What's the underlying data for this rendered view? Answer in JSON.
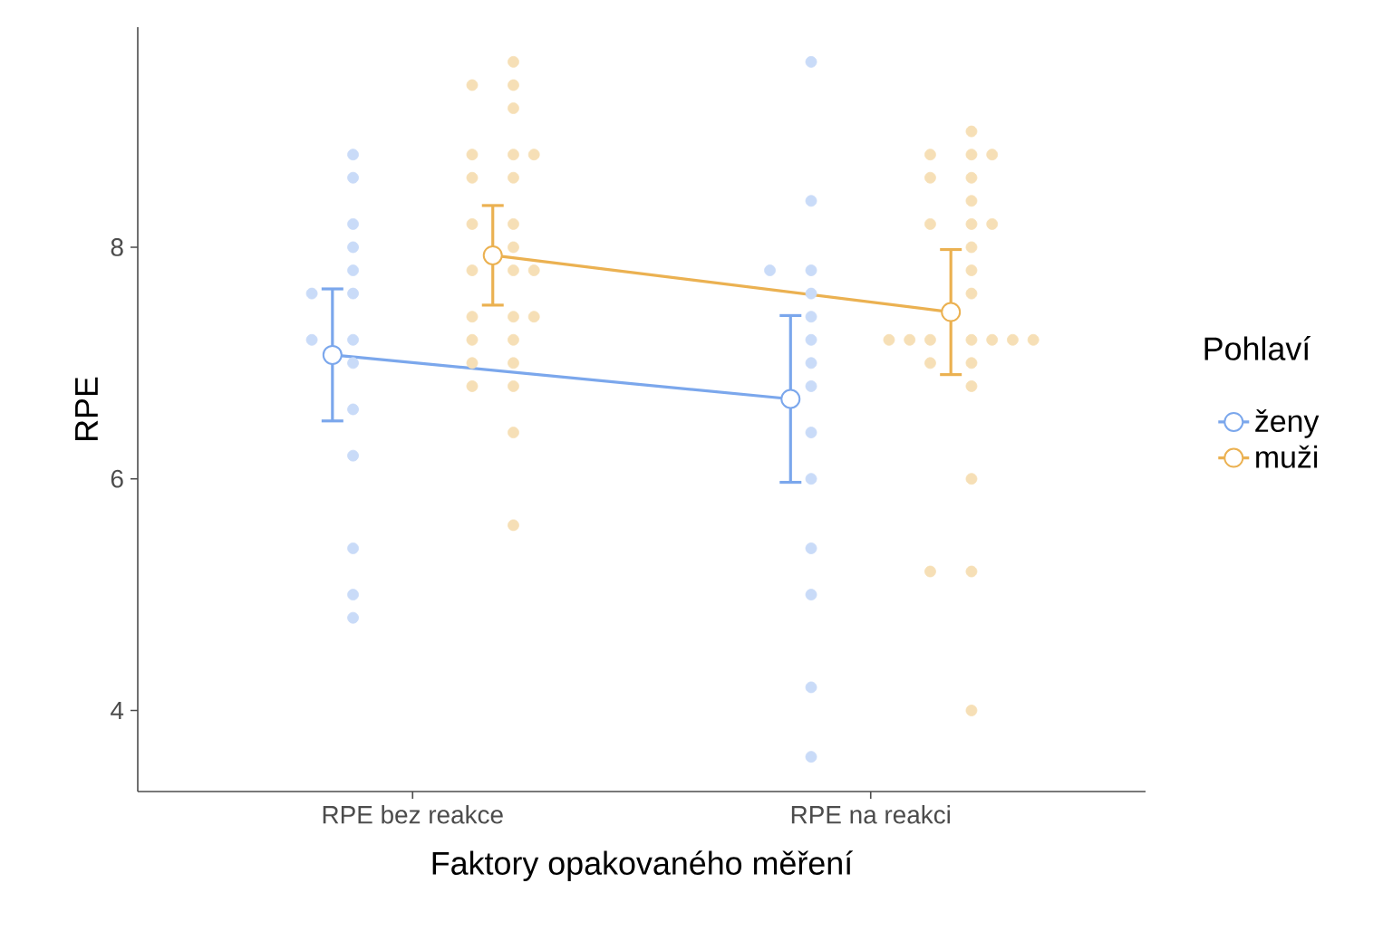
{
  "chart_data": {
    "type": "line",
    "xlabel": "Faktory opakovaného měření",
    "ylabel": "RPE",
    "legend_title": "Pohlaví",
    "legend": "right",
    "marker": "circle",
    "line_style": "solid",
    "grid": false,
    "categories": [
      "RPE bez reakce",
      "RPE na reakci"
    ],
    "ylim": [
      3.3,
      9.9
    ],
    "yticks": [
      4,
      6,
      8
    ],
    "series": [
      {
        "name": "ženy",
        "color": "#7ba7ec",
        "values": [
          7.07,
          6.69
        ],
        "errors": [
          0.57,
          0.72
        ]
      },
      {
        "name": "muži",
        "color": "#ebb151",
        "values": [
          7.93,
          7.44
        ],
        "errors": [
          0.43,
          0.54
        ]
      },
      {
        "type": "scatter",
        "color": "#c9dbf8",
        "x": [
          "RPE bez reakce",
          "RPE bez reakce",
          "RPE bez reakce",
          "RPE bez reakce",
          "RPE bez reakce",
          "RPE bez reakce",
          "RPE bez reakce",
          "RPE bez reakce",
          "RPE bez reakce",
          "RPE bez reakce",
          "RPE bez reakce",
          "RPE bez reakce",
          "RPE bez reakce",
          "RPE bez reakce",
          "RPE bez reakce",
          "RPE na reakci",
          "RPE na reakci",
          "RPE na reakci",
          "RPE na reakci",
          "RPE na reakci",
          "RPE na reakci",
          "RPE na reakci",
          "RPE na reakci",
          "RPE na reakci",
          "RPE na reakci",
          "RPE na reakci",
          "RPE na reakci",
          "RPE na reakci",
          "RPE na reakci",
          "RPE na reakci"
        ],
        "values": [
          8.8,
          8.6,
          8.2,
          8.0,
          7.8,
          7.6,
          7.6,
          7.2,
          7.2,
          7.0,
          6.6,
          6.2,
          5.4,
          5.0,
          4.8,
          9.6,
          8.4,
          7.8,
          7.8,
          7.6,
          7.4,
          7.2,
          7.0,
          6.8,
          6.4,
          6.0,
          5.4,
          5.0,
          4.2,
          3.6
        ]
      },
      {
        "type": "scatter",
        "color": "#f6dfb6",
        "x": [
          "RPE bez reakce",
          "RPE bez reakce",
          "RPE bez reakce",
          "RPE bez reakce",
          "RPE bez reakce",
          "RPE bez reakce",
          "RPE bez reakce",
          "RPE bez reakce",
          "RPE bez reakce",
          "RPE bez reakce",
          "RPE bez reakce",
          "RPE bez reakce",
          "RPE bez reakce",
          "RPE bez reakce",
          "RPE bez reakce",
          "RPE bez reakce",
          "RPE bez reakce",
          "RPE bez reakce",
          "RPE bez reakce",
          "RPE bez reakce",
          "RPE bez reakce",
          "RPE bez reakce",
          "RPE bez reakce",
          "RPE bez reakce",
          "RPE bez reakce",
          "RPE bez reakce",
          "RPE na reakci",
          "RPE na reakci",
          "RPE na reakci",
          "RPE na reakci",
          "RPE na reakci",
          "RPE na reakci",
          "RPE na reakci",
          "RPE na reakci",
          "RPE na reakci",
          "RPE na reakci",
          "RPE na reakci",
          "RPE na reakci",
          "RPE na reakci",
          "RPE na reakci",
          "RPE na reakci",
          "RPE na reakci",
          "RPE na reakci",
          "RPE na reakci",
          "RPE na reakci",
          "RPE na reakci",
          "RPE na reakci",
          "RPE na reakci",
          "RPE na reakci",
          "RPE na reakci",
          "RPE na reakci",
          "RPE na reakci",
          "RPE na reakci"
        ],
        "values": [
          9.6,
          9.4,
          9.4,
          9.2,
          8.8,
          8.8,
          8.8,
          8.6,
          8.6,
          8.2,
          8.2,
          8.0,
          7.8,
          7.8,
          7.8,
          7.4,
          7.4,
          7.4,
          7.2,
          7.2,
          7.0,
          7.0,
          6.8,
          6.8,
          6.4,
          5.6,
          9.0,
          8.8,
          8.8,
          8.8,
          8.6,
          8.6,
          8.4,
          8.2,
          8.2,
          8.2,
          8.0,
          7.8,
          7.6,
          7.2,
          7.2,
          7.2,
          7.2,
          7.2,
          7.2,
          7.2,
          7.0,
          7.0,
          6.8,
          6.0,
          5.2,
          5.2,
          4.0
        ]
      }
    ]
  }
}
